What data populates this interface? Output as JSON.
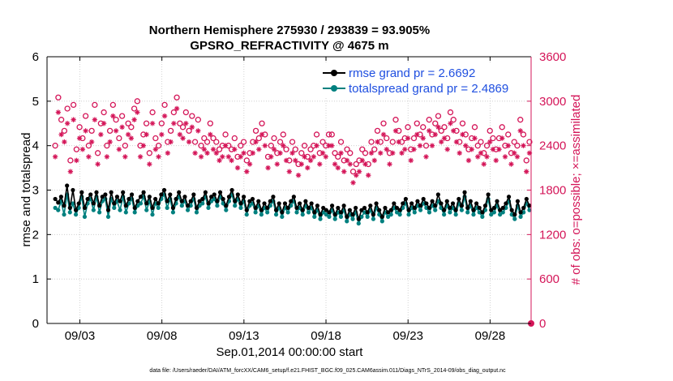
{
  "chart_data": {
    "type": "line",
    "title": "Northern Hemisphere 275930 / 293839 = 93.905%",
    "subtitle": "GPSRO_REFRACTIVITY @ 4675 m",
    "xlabel": "Sep.01,2014 00:00:00 start",
    "ylabel": "rmse and totalspread",
    "y2label": "# of obs: o=possible; ×=assimilated",
    "xlim": [
      1,
      30.5
    ],
    "ylim": [
      0,
      6
    ],
    "y2lim": [
      0,
      3600
    ],
    "xticks": [
      3,
      8,
      13,
      18,
      23,
      28
    ],
    "xtick_labels": [
      "09/03",
      "09/08",
      "09/13",
      "09/18",
      "09/23",
      "09/28"
    ],
    "yticks": [
      "0",
      "1",
      "2",
      "3",
      "4",
      "5",
      "6"
    ],
    "y2ticks": [
      "0",
      "600",
      "1200",
      "1800",
      "2400",
      "3000",
      "3600"
    ],
    "grid": true,
    "legend_position": "top-right",
    "colors": {
      "rmse": "#000000",
      "spread": "#00807f",
      "obs": "#d41558",
      "legend_text": "#1f4fe0"
    },
    "series": [
      {
        "name": "rmse grand pr = 2.6692",
        "axis": "left",
        "marker": "filled-circle",
        "values": [
          2.8,
          2.72,
          2.85,
          2.65,
          3.1,
          2.6,
          3.0,
          2.55,
          2.7,
          2.95,
          2.6,
          2.8,
          2.9,
          2.7,
          2.95,
          2.65,
          2.85,
          2.9,
          2.55,
          2.95,
          2.7,
          2.85,
          2.75,
          2.95,
          2.65,
          2.8,
          2.9,
          2.6,
          2.75,
          2.85,
          2.95,
          2.7,
          2.85,
          2.6,
          2.8,
          2.7,
          2.9,
          3.0,
          2.75,
          2.9,
          2.6,
          2.8,
          2.95,
          2.75,
          2.85,
          2.65,
          2.75,
          2.9,
          2.6,
          2.75,
          2.8,
          2.95,
          2.7,
          2.85,
          2.9,
          2.75,
          2.95,
          2.8,
          2.65,
          2.85,
          3.0,
          2.75,
          2.9,
          2.7,
          2.85,
          2.55,
          2.75,
          2.8,
          2.6,
          2.75,
          2.55,
          2.7,
          2.6,
          2.75,
          2.85,
          2.55,
          2.7,
          2.5,
          2.7,
          2.6,
          2.75,
          2.85,
          2.6,
          2.7,
          2.55,
          2.75,
          2.6,
          2.7,
          2.5,
          2.65,
          2.45,
          2.6,
          2.55,
          2.5,
          2.65,
          2.45,
          2.6,
          2.5,
          2.65,
          2.4,
          2.55,
          2.45,
          2.6,
          2.35,
          2.55,
          2.6,
          2.5,
          2.65,
          2.45,
          2.7,
          2.55,
          2.4,
          2.6,
          2.5,
          2.55,
          2.7,
          2.6,
          2.55,
          2.7,
          2.8,
          2.55,
          2.7,
          2.6,
          2.75,
          2.65,
          2.8,
          2.7,
          2.6,
          2.75,
          2.65,
          2.9,
          2.7,
          2.55,
          2.75,
          2.6,
          2.7,
          2.55,
          2.8,
          2.65,
          2.95,
          2.6,
          2.75,
          2.55,
          2.7,
          2.6,
          2.5,
          2.65,
          2.9,
          2.55,
          2.6,
          2.75,
          2.55,
          2.6,
          2.7,
          2.85,
          2.55,
          2.45,
          2.75,
          2.5,
          2.6,
          2.8,
          2.65
        ]
      },
      {
        "name": "totalspread grand pr = 2.4869",
        "axis": "left",
        "marker": "filled-circle",
        "values": [
          2.6,
          2.55,
          2.75,
          2.45,
          2.9,
          2.5,
          2.7,
          2.45,
          2.6,
          2.85,
          2.4,
          2.7,
          2.8,
          2.55,
          2.85,
          2.5,
          2.75,
          2.8,
          2.4,
          2.8,
          2.6,
          2.75,
          2.55,
          2.85,
          2.5,
          2.7,
          2.8,
          2.5,
          2.65,
          2.7,
          2.85,
          2.55,
          2.75,
          2.45,
          2.7,
          2.6,
          2.8,
          2.9,
          2.6,
          2.8,
          2.5,
          2.7,
          2.85,
          2.65,
          2.75,
          2.55,
          2.65,
          2.8,
          2.5,
          2.65,
          2.7,
          2.85,
          2.6,
          2.75,
          2.8,
          2.65,
          2.85,
          2.7,
          2.55,
          2.75,
          2.9,
          2.65,
          2.8,
          2.6,
          2.75,
          2.45,
          2.65,
          2.7,
          2.5,
          2.65,
          2.45,
          2.6,
          2.5,
          2.65,
          2.75,
          2.45,
          2.6,
          2.4,
          2.6,
          2.5,
          2.65,
          2.75,
          2.5,
          2.6,
          2.45,
          2.65,
          2.5,
          2.6,
          2.4,
          2.55,
          2.35,
          2.5,
          2.45,
          2.4,
          2.55,
          2.35,
          2.5,
          2.4,
          2.55,
          2.3,
          2.45,
          2.35,
          2.5,
          2.25,
          2.4,
          2.5,
          2.4,
          2.55,
          2.35,
          2.6,
          2.45,
          2.3,
          2.5,
          2.4,
          2.45,
          2.6,
          2.5,
          2.45,
          2.6,
          2.7,
          2.45,
          2.6,
          2.5,
          2.65,
          2.55,
          2.7,
          2.6,
          2.5,
          2.65,
          2.55,
          2.75,
          2.6,
          2.45,
          2.65,
          2.5,
          2.6,
          2.45,
          2.7,
          2.55,
          2.85,
          2.5,
          2.65,
          2.45,
          2.6,
          2.5,
          2.4,
          2.55,
          2.8,
          2.45,
          2.5,
          2.65,
          2.45,
          2.5,
          2.6,
          2.75,
          2.45,
          2.35,
          2.65,
          2.4,
          2.5,
          2.7,
          2.55
        ]
      },
      {
        "name": "obs possible",
        "axis": "right",
        "marker": "open-circle",
        "values": [
          2400,
          3050,
          2750,
          2600,
          2900,
          2200,
          2950,
          2350,
          2650,
          2500,
          2800,
          2400,
          2600,
          2950,
          2300,
          2700,
          2850,
          2400,
          2600,
          2950,
          2750,
          2500,
          2800,
          2400,
          2700,
          2650,
          2900,
          3000,
          2400,
          2550,
          2700,
          2300,
          2850,
          2500,
          2400,
          2700,
          2950,
          2450,
          2600,
          2850,
          3050,
          2700,
          2650,
          2850,
          2600,
          2800,
          2450,
          2750,
          2400,
          2500,
          2450,
          2700,
          2500,
          2450,
          2350,
          2400,
          2550,
          2400,
          2350,
          2500,
          2250,
          2400,
          2450,
          2200,
          2300,
          2450,
          2600,
          2500,
          2700,
          2550,
          2250,
          2400,
          2500,
          2300,
          2450,
          2550,
          2350,
          2200,
          2450,
          2350,
          2150,
          2300,
          2400,
          2250,
          2350,
          2400,
          2550,
          2300,
          2450,
          2400,
          2550,
          2550,
          2300,
          2250,
          2450,
          2200,
          2350,
          2300,
          2050,
          2150,
          2200,
          2350,
          2300,
          2150,
          2450,
          2350,
          2600,
          2450,
          2700,
          2500,
          2300,
          2450,
          2750,
          2600,
          2450,
          2500,
          2650,
          2350,
          2500,
          2700,
          2550,
          2650,
          2400,
          2750,
          2550,
          2700,
          2800,
          2600,
          2650,
          2500,
          2850,
          2750,
          2600,
          2450,
          2700,
          2550,
          2350,
          2500,
          2650,
          2400,
          2450,
          2300,
          2400,
          2600,
          2500,
          2350,
          2500,
          2650,
          2400,
          2550,
          2300,
          2450,
          2400,
          2750,
          2550,
          2200,
          2450
        ]
      },
      {
        "name": "obs assimilated",
        "axis": "right",
        "marker": "asterisk",
        "values": [
          2250,
          2850,
          2550,
          2450,
          2700,
          2050,
          2750,
          2200,
          2500,
          2350,
          2600,
          2250,
          2450,
          2750,
          2150,
          2550,
          2700,
          2250,
          2450,
          2800,
          2600,
          2350,
          2650,
          2250,
          2550,
          2500,
          2750,
          2850,
          2250,
          2400,
          2550,
          2150,
          2700,
          2350,
          2250,
          2550,
          2800,
          2300,
          2450,
          2700,
          2900,
          2550,
          2500,
          2700,
          2450,
          2650,
          2300,
          2600,
          2250,
          2350,
          2300,
          2550,
          2350,
          2300,
          2200,
          2250,
          2400,
          2250,
          2200,
          2350,
          2100,
          2250,
          2300,
          2050,
          2150,
          2300,
          2450,
          2350,
          2550,
          2400,
          2100,
          2250,
          2350,
          2150,
          2300,
          2400,
          2200,
          2050,
          2300,
          2200,
          2000,
          2150,
          2250,
          2100,
          2200,
          2250,
          2400,
          2150,
          2300,
          2250,
          2400,
          2400,
          2150,
          2100,
          2300,
          2050,
          2200,
          2150,
          1900,
          2000,
          2050,
          2200,
          2150,
          2000,
          2300,
          2200,
          2450,
          2300,
          2550,
          2350,
          2150,
          2300,
          2600,
          2450,
          2300,
          2350,
          2500,
          2200,
          2350,
          2550,
          2400,
          2500,
          2250,
          2600,
          2400,
          2550,
          2650,
          2450,
          2500,
          2350,
          2700,
          2600,
          2450,
          2300,
          2550,
          2400,
          2200,
          2350,
          2500,
          2250,
          2300,
          2150,
          2250,
          2450,
          2350,
          2200,
          2350,
          2500,
          2250,
          2400,
          2150,
          2300,
          2250,
          2600,
          2400,
          2050,
          2300
        ]
      }
    ]
  },
  "footer": {
    "data_file": "data file: /Users/raeder/DAI/ATM_forcXX/CAM6_setup/f.e21.FHIST_BGC.f09_025.CAM6assim.011/Diags_NTrS_2014-09/obs_diag_output.nc"
  }
}
